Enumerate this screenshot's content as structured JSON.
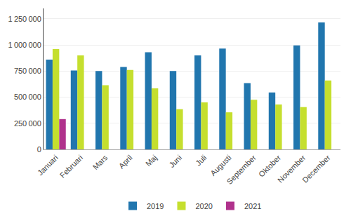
{
  "chart_data": {
    "type": "bar",
    "categories": [
      "Januari",
      "Februari",
      "Mars",
      "April",
      "Maj",
      "Juni",
      "Juli",
      "Augusti",
      "September",
      "Oktober",
      "November",
      "December"
    ],
    "series": [
      {
        "name": "2019",
        "color": "#2176ae",
        "values": [
          860000,
          755000,
          750000,
          790000,
          930000,
          750000,
          900000,
          965000,
          635000,
          545000,
          995000,
          1215000
        ]
      },
      {
        "name": "2020",
        "color": "#c5df2e",
        "values": [
          960000,
          900000,
          615000,
          760000,
          585000,
          385000,
          450000,
          355000,
          475000,
          430000,
          405000,
          660000
        ]
      },
      {
        "name": "2021",
        "color": "#b0328c",
        "values": [
          290000,
          null,
          null,
          null,
          null,
          null,
          null,
          null,
          null,
          null,
          null,
          null
        ]
      }
    ],
    "ylim": [
      0,
      1350000
    ],
    "yticks": [
      0,
      {
        "value": 250000,
        "label": "250 000"
      },
      {
        "value": 500000,
        "label": "500 000"
      },
      {
        "value": 750000,
        "label": "750 000"
      },
      {
        "value": 1000000,
        "label": "1 000 000"
      },
      {
        "value": 1250000,
        "label": "1 250 000"
      }
    ],
    "grid": true,
    "legend": "bottom"
  }
}
